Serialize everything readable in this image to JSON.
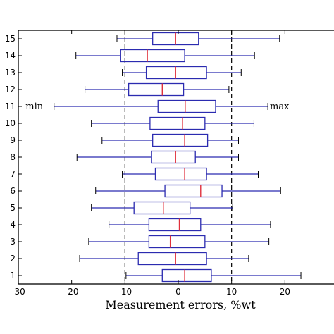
{
  "chart_data": {
    "type": "boxplot",
    "orientation": "horizontal",
    "xlabel": "Measurement errors, %wt",
    "xlim": [
      -30,
      30
    ],
    "xticks": [
      -30,
      -20,
      -10,
      0,
      10,
      20
    ],
    "ylim": [
      0.5,
      15.5
    ],
    "reference_lines": [
      -10,
      10
    ],
    "annotations": [
      {
        "text": "min",
        "category": "11",
        "x": -27
      },
      {
        "text": "max",
        "category": "11",
        "x": 19
      }
    ],
    "categories": [
      "1",
      "2",
      "3",
      "4",
      "5",
      "6",
      "7",
      "8",
      "9",
      "10",
      "11",
      "12",
      "13",
      "14",
      "15"
    ],
    "boxes": [
      {
        "label": "1",
        "whislo": -9.8,
        "q1": -3.0,
        "med": 1.2,
        "q3": 6.2,
        "whishi": 23.0
      },
      {
        "label": "2",
        "whislo": -18.5,
        "q1": -7.5,
        "med": -0.5,
        "q3": 5.3,
        "whishi": 13.2
      },
      {
        "label": "3",
        "whislo": -16.8,
        "q1": -5.5,
        "med": -1.5,
        "q3": 5.0,
        "whishi": 17.0
      },
      {
        "label": "4",
        "whislo": -13.0,
        "q1": -5.5,
        "med": 0.2,
        "q3": 4.2,
        "whishi": 17.3
      },
      {
        "label": "5",
        "whislo": -16.3,
        "q1": -8.3,
        "med": -2.8,
        "q3": 2.2,
        "whishi": 10.2
      },
      {
        "label": "6",
        "whislo": -15.5,
        "q1": -2.5,
        "med": 4.2,
        "q3": 8.2,
        "whishi": 19.2
      },
      {
        "label": "7",
        "whislo": -10.5,
        "q1": -4.3,
        "med": 1.2,
        "q3": 5.3,
        "whishi": 15.0
      },
      {
        "label": "8",
        "whislo": -19.0,
        "q1": -5.0,
        "med": -0.5,
        "q3": 3.2,
        "whishi": 11.3
      },
      {
        "label": "9",
        "whislo": -14.3,
        "q1": -4.8,
        "med": 1.2,
        "q3": 5.5,
        "whishi": 11.3
      },
      {
        "label": "10",
        "whislo": -16.3,
        "q1": -5.3,
        "med": 0.8,
        "q3": 5.0,
        "whishi": 14.2
      },
      {
        "label": "11",
        "whislo": -23.3,
        "q1": -3.8,
        "med": 1.3,
        "q3": 7.0,
        "whishi": 16.8
      },
      {
        "label": "12",
        "whislo": -17.5,
        "q1": -9.3,
        "med": -3.0,
        "q3": 1.0,
        "whishi": 9.5
      },
      {
        "label": "13",
        "whislo": -10.5,
        "q1": -6.0,
        "med": -0.5,
        "q3": 5.3,
        "whishi": 11.8
      },
      {
        "label": "14",
        "whislo": -19.2,
        "q1": -10.8,
        "med": -5.8,
        "q3": 1.2,
        "whishi": 14.3
      },
      {
        "label": "15",
        "whislo": -11.5,
        "q1": -4.8,
        "med": -0.5,
        "q3": 3.8,
        "whishi": 19.0
      }
    ],
    "colors": {
      "box": "#2b2bb0",
      "whisker": "#2b2bb0",
      "median": "#e0303c",
      "reference": "#000000",
      "axes": "#000000"
    }
  }
}
